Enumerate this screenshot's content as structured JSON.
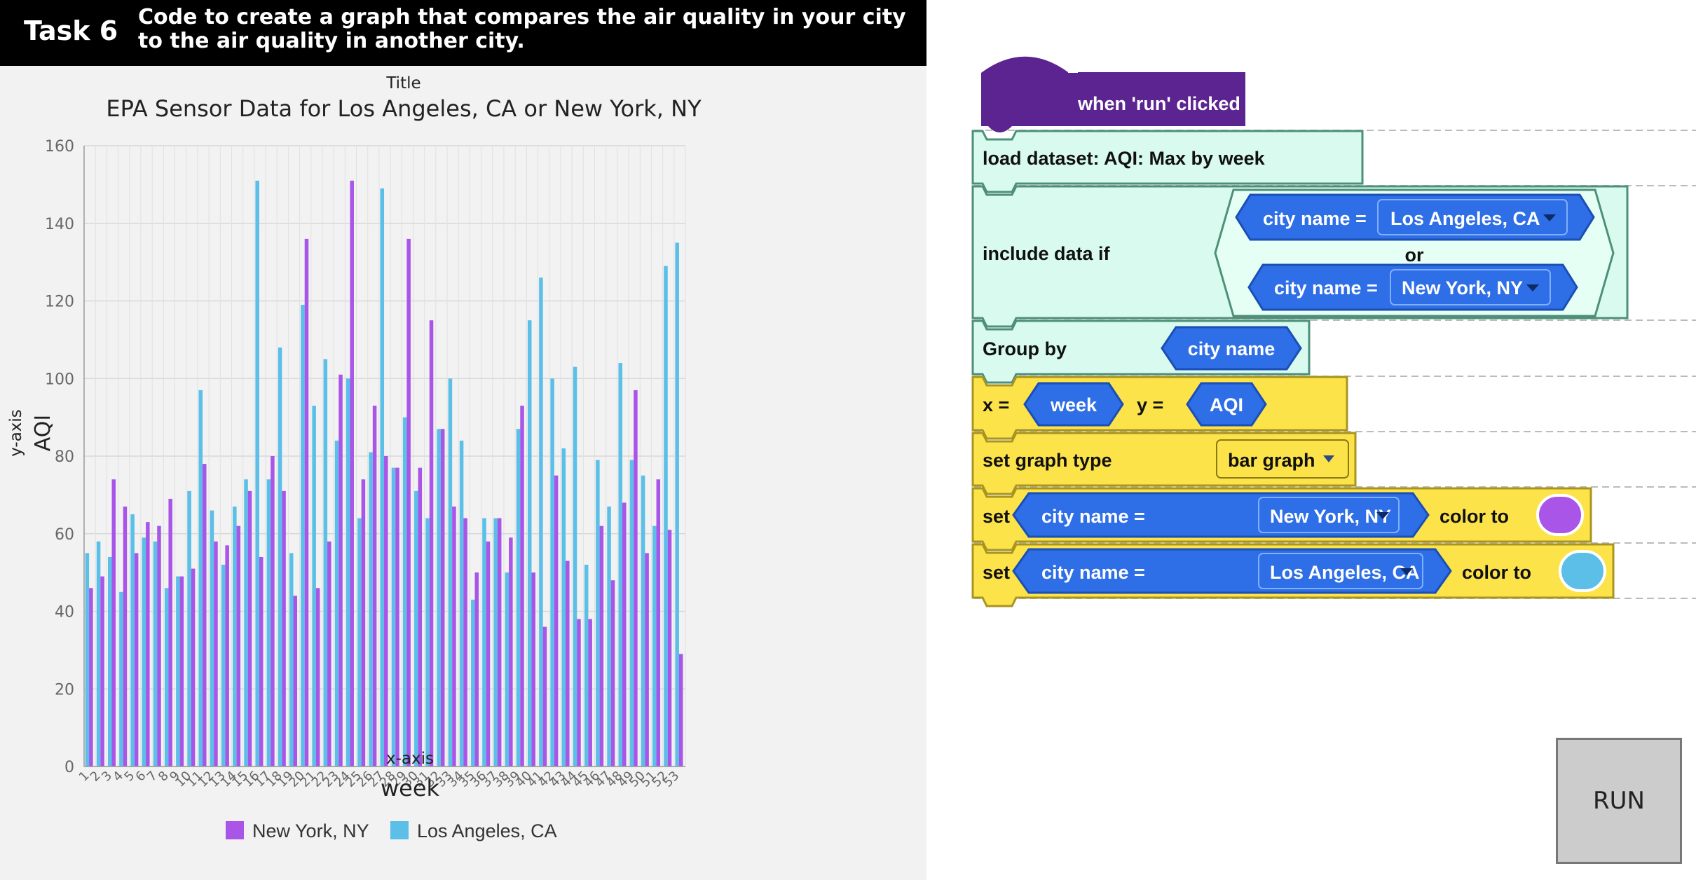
{
  "task": {
    "number_label": "Task 6",
    "description": "Code to create a graph that compares the air quality in your city to the air quality in another city."
  },
  "chart_data": {
    "type": "bar",
    "title_caption": "Title",
    "title": "EPA Sensor Data for Los Angeles, CA or New York, NY",
    "xlabel_caption": "x-axis",
    "xlabel": "week",
    "ylabel_caption": "y-axis",
    "ylabel": "AQI",
    "ylim": [
      0,
      160
    ],
    "yticks": [
      0,
      20,
      40,
      60,
      80,
      100,
      120,
      140,
      160
    ],
    "grid": true,
    "legend_position": "bottom",
    "categories": [
      "1",
      "2",
      "3",
      "4",
      "5",
      "6",
      "7",
      "8",
      "9",
      "10",
      "11",
      "12",
      "13",
      "14",
      "15",
      "16",
      "17",
      "18",
      "19",
      "20",
      "21",
      "22",
      "23",
      "24",
      "25",
      "26",
      "27",
      "28",
      "29",
      "30",
      "31",
      "32",
      "33",
      "34",
      "35",
      "36",
      "37",
      "38",
      "39",
      "40",
      "41",
      "42",
      "43",
      "44",
      "45",
      "46",
      "47",
      "48",
      "49",
      "50",
      "51",
      "52",
      "53"
    ],
    "series": [
      {
        "name": "Los Angeles, CA",
        "color": "#5bbfe8",
        "values": [
          55,
          58,
          54,
          45,
          65,
          59,
          58,
          46,
          49,
          71,
          97,
          66,
          52,
          67,
          74,
          151,
          74,
          108,
          55,
          119,
          93,
          105,
          84,
          100,
          64,
          81,
          149,
          77,
          90,
          71,
          64,
          87,
          100,
          84,
          43,
          64,
          64,
          50,
          87,
          115,
          126,
          100,
          82,
          103,
          52,
          79,
          67,
          104,
          79,
          75,
          62,
          129,
          135
        ]
      },
      {
        "name": "New York, NY",
        "color": "#a855e8",
        "values": [
          46,
          49,
          74,
          67,
          55,
          63,
          62,
          69,
          49,
          51,
          78,
          58,
          57,
          62,
          71,
          54,
          80,
          71,
          44,
          136,
          46,
          58,
          101,
          151,
          74,
          93,
          80,
          77,
          136,
          77,
          115,
          87,
          67,
          64,
          50,
          58,
          64,
          59,
          93,
          50,
          36,
          75,
          53,
          38,
          38,
          62,
          48,
          68,
          97,
          55,
          74,
          61,
          29
        ]
      }
    ]
  },
  "blocks": {
    "hat_label": "when 'run' clicked",
    "load_label": "load dataset: AQI: Max by week",
    "include_label": "include data if",
    "or_label": "or",
    "city_name_eq": "city name =",
    "city_la": "Los Angeles, CA",
    "city_ny": "New York, NY",
    "group_by_label": "Group by",
    "group_field": "city name",
    "x_eq": "x =",
    "x_field": "week",
    "y_eq": "y =",
    "y_field": "AQI",
    "graph_type_label": "set graph type",
    "graph_type_value": "bar graph",
    "set_label": "set",
    "color_to_label": "color to",
    "ny_color": "#a855e8",
    "la_color": "#5bbfe8"
  },
  "run_button": {
    "label": "RUN"
  }
}
